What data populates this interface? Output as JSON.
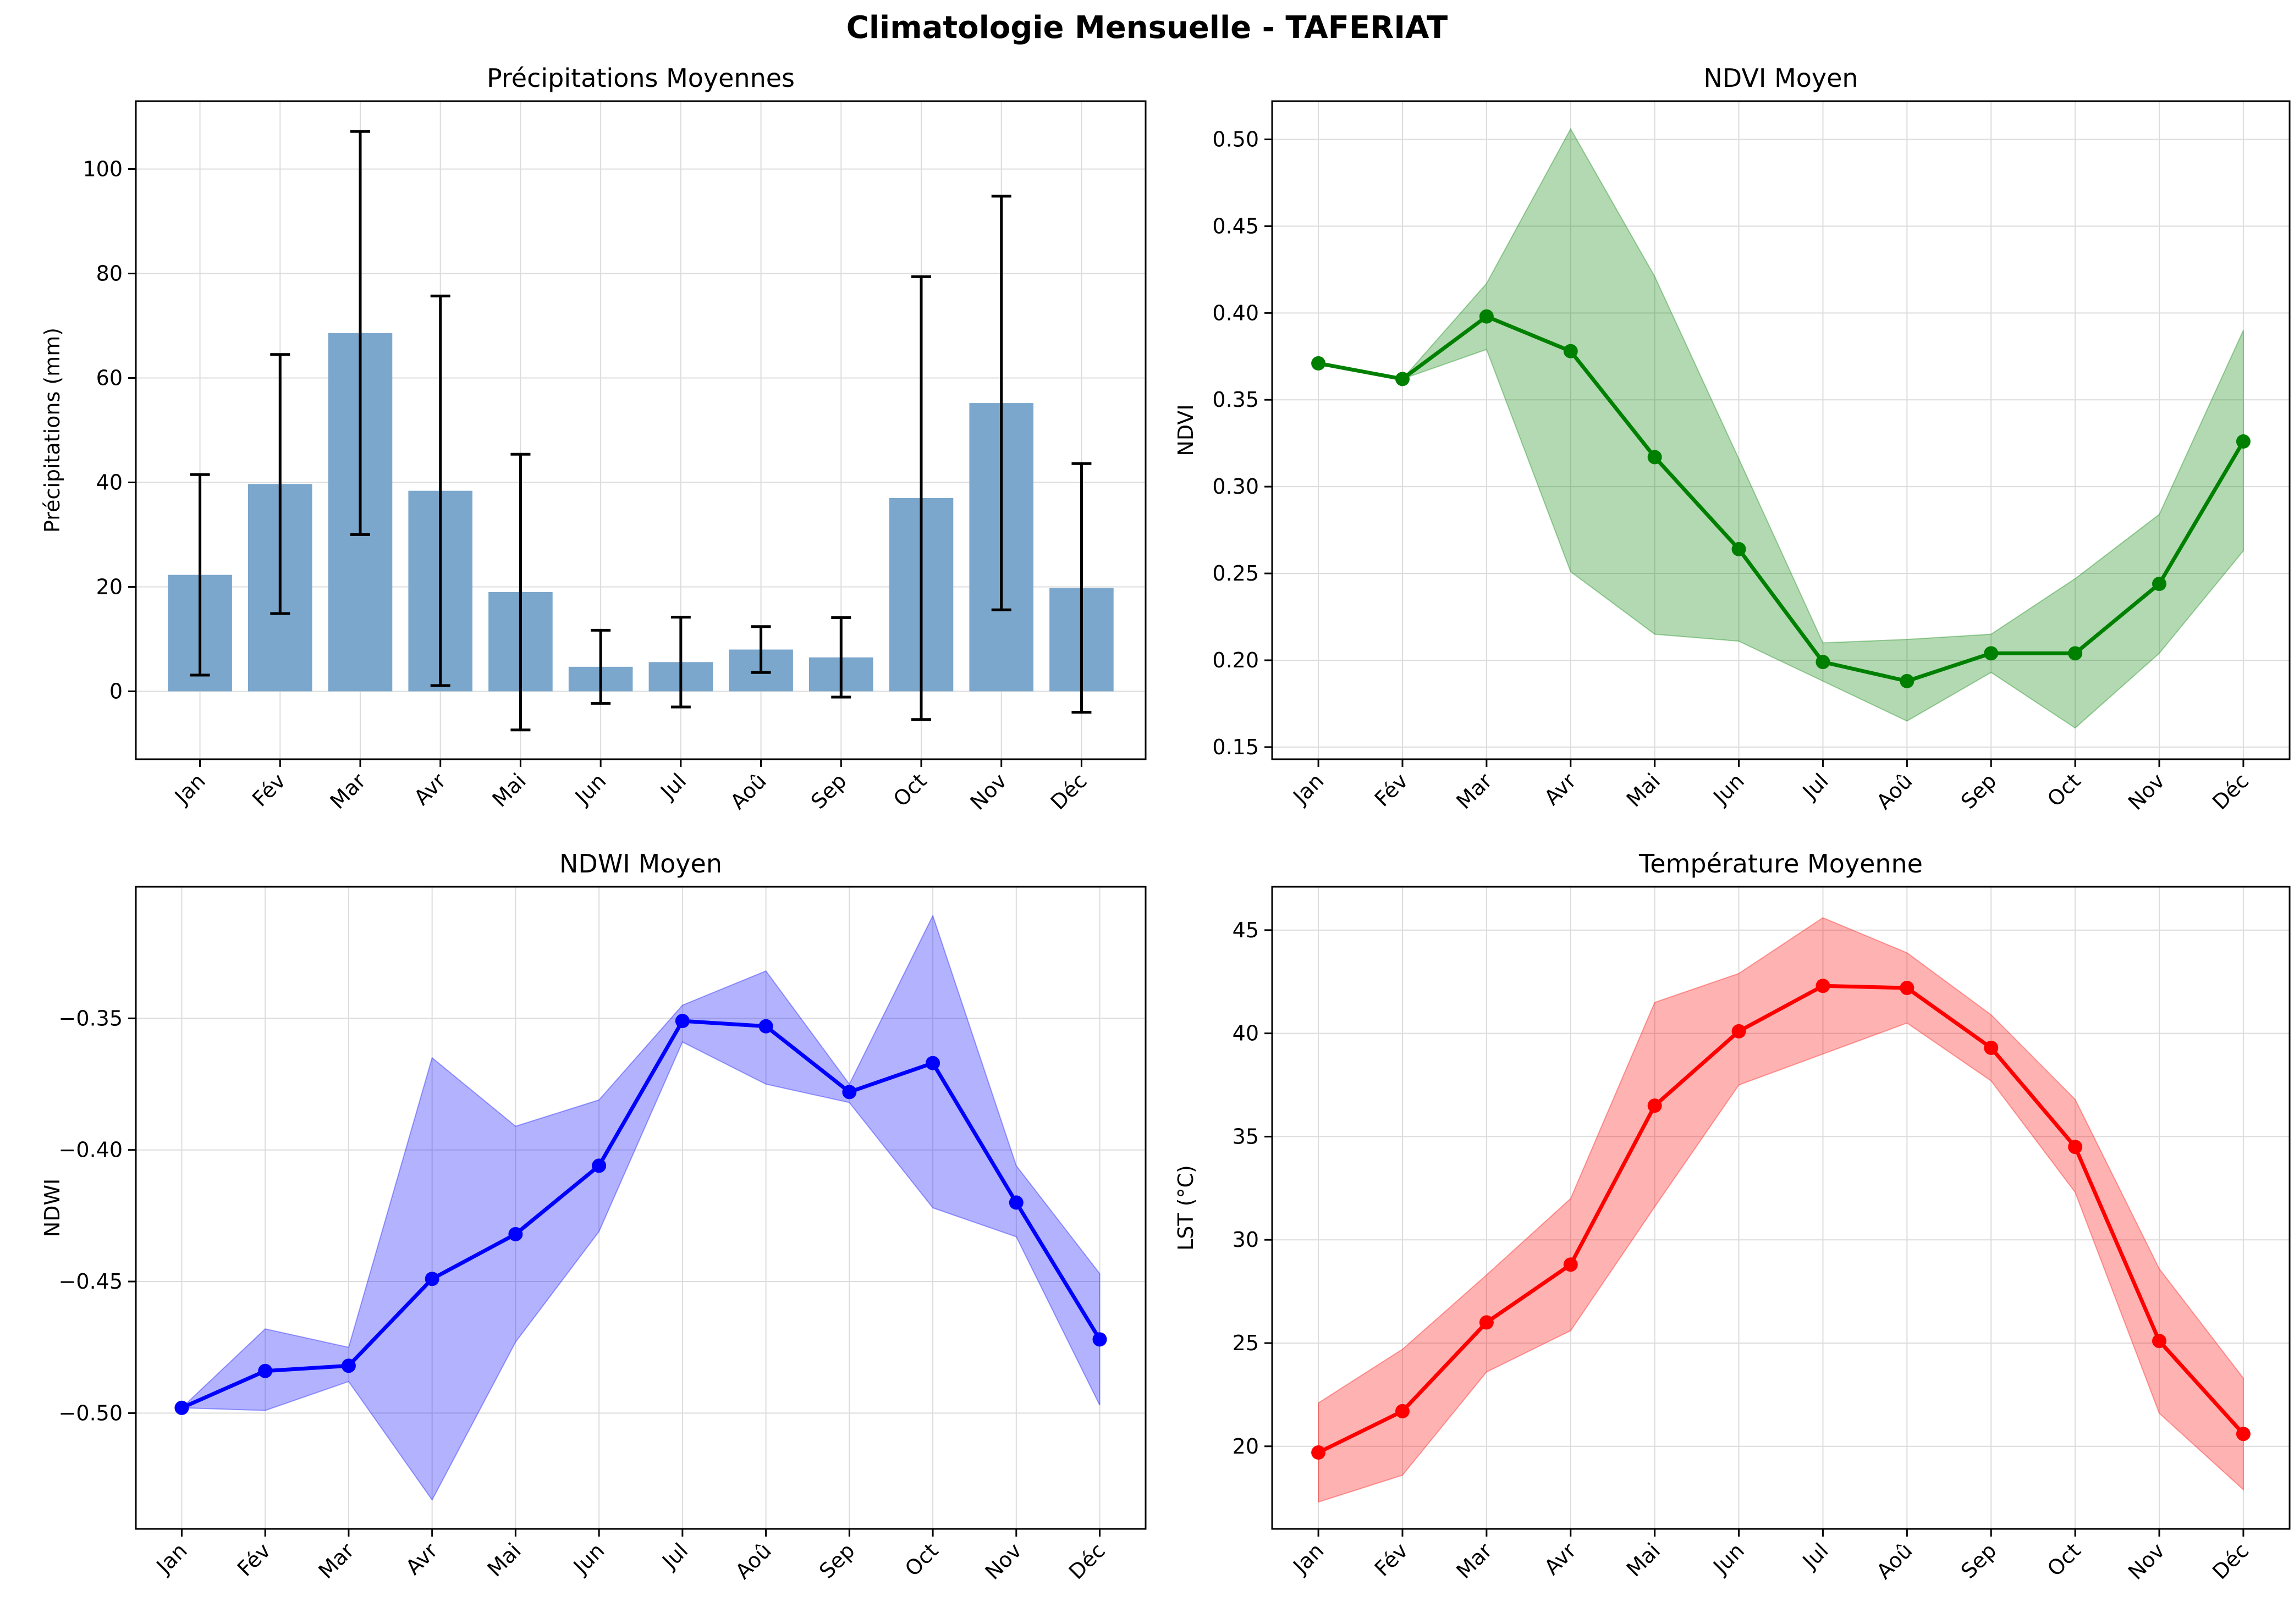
{
  "figure": {
    "title": "Climatologie Mensuelle - TAFERIAT"
  },
  "chart_data": [
    {
      "type": "bar",
      "title": "Précipitations Moyennes",
      "xlabel": "",
      "ylabel": "Précipitations (mm)",
      "categories": [
        "Jan",
        "Fév",
        "Mar",
        "Avr",
        "Mai",
        "Jun",
        "Jul",
        "Aoû",
        "Sep",
        "Oct",
        "Nov",
        "Déc"
      ],
      "values": [
        22.3,
        39.7,
        68.6,
        38.4,
        19.0,
        4.7,
        5.6,
        8.0,
        6.5,
        37.0,
        55.2,
        19.8
      ],
      "error": [
        19.2,
        24.8,
        38.6,
        37.3,
        26.4,
        7.0,
        8.6,
        4.4,
        7.6,
        42.4,
        39.6,
        23.8
      ],
      "ylim": [
        -13,
        113
      ],
      "yticks": [
        0,
        20,
        40,
        60,
        80,
        100
      ],
      "grid": true,
      "colors": {
        "bar": "#7ba7cc",
        "error": "#000000"
      }
    },
    {
      "type": "line",
      "title": "NDVI Moyen",
      "xlabel": "",
      "ylabel": "NDVI",
      "categories": [
        "Jan",
        "Fév",
        "Mar",
        "Avr",
        "Mai",
        "Jun",
        "Jul",
        "Aoû",
        "Sep",
        "Oct",
        "Nov",
        "Déc"
      ],
      "values": [
        0.371,
        0.362,
        0.398,
        0.378,
        0.317,
        0.264,
        0.199,
        0.188,
        0.204,
        0.204,
        0.244,
        0.326
      ],
      "band_lower": [
        0.371,
        0.362,
        0.379,
        0.251,
        0.215,
        0.211,
        0.188,
        0.165,
        0.193,
        0.161,
        0.204,
        0.263
      ],
      "band_upper": [
        0.371,
        0.362,
        0.417,
        0.506,
        0.421,
        0.316,
        0.21,
        0.212,
        0.215,
        0.247,
        0.284,
        0.39
      ],
      "ylim": [
        0.143,
        0.522
      ],
      "yticks": [
        "0.15",
        "0.20",
        "0.25",
        "0.30",
        "0.35",
        "0.40",
        "0.45",
        "0.50"
      ],
      "grid": true,
      "colors": {
        "line": "#008000",
        "band": "#008000"
      }
    },
    {
      "type": "line",
      "title": "NDWI Moyen",
      "xlabel": "",
      "ylabel": "NDWI",
      "categories": [
        "Jan",
        "Fév",
        "Mar",
        "Avr",
        "Mai",
        "Jun",
        "Jul",
        "Aoû",
        "Sep",
        "Oct",
        "Nov",
        "Déc"
      ],
      "values": [
        -0.498,
        -0.484,
        -0.482,
        -0.449,
        -0.432,
        -0.406,
        -0.351,
        -0.353,
        -0.378,
        -0.367,
        -0.42,
        -0.472
      ],
      "band_lower": [
        -0.498,
        -0.499,
        -0.488,
        -0.533,
        -0.473,
        -0.431,
        -0.359,
        -0.375,
        -0.382,
        -0.422,
        -0.433,
        -0.497
      ],
      "band_upper": [
        -0.498,
        -0.468,
        -0.475,
        -0.365,
        -0.391,
        -0.381,
        -0.345,
        -0.332,
        -0.375,
        -0.311,
        -0.406,
        -0.447
      ],
      "ylim": [
        -0.544,
        -0.3
      ],
      "yticks": [
        "−0.50",
        "−0.45",
        "−0.40",
        "−0.35"
      ],
      "grid": true,
      "colors": {
        "line": "#0000ff",
        "band": "#0000ff"
      }
    },
    {
      "type": "line",
      "title": "Température Moyenne",
      "xlabel": "",
      "ylabel": "LST (°C)",
      "categories": [
        "Jan",
        "Fév",
        "Mar",
        "Avr",
        "Mai",
        "Jun",
        "Jul",
        "Aoû",
        "Sep",
        "Oct",
        "Nov",
        "Déc"
      ],
      "values": [
        19.7,
        21.7,
        26.0,
        28.8,
        36.5,
        40.1,
        42.3,
        42.2,
        39.3,
        34.5,
        25.1,
        20.6
      ],
      "band_lower": [
        17.3,
        18.6,
        23.6,
        25.6,
        31.6,
        37.5,
        39.0,
        40.5,
        37.7,
        32.3,
        21.6,
        17.9
      ],
      "band_upper": [
        22.1,
        24.7,
        28.3,
        32.0,
        41.5,
        42.9,
        45.6,
        43.9,
        40.9,
        36.8,
        28.6,
        23.3
      ],
      "ylim": [
        16.0,
        47.1
      ],
      "yticks": [
        20,
        25,
        30,
        35,
        40,
        45
      ],
      "grid": true,
      "colors": {
        "line": "#ff0000",
        "band": "#ff0000"
      }
    }
  ]
}
